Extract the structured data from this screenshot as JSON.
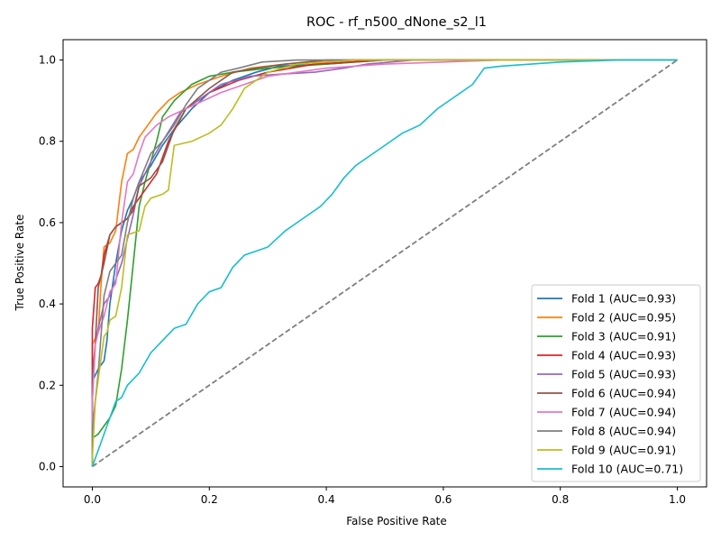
{
  "chart_data": {
    "type": "line",
    "title": "ROC - rf_n500_dNone_s2_l1",
    "xlabel": "False Positive Rate",
    "ylabel": "True Positive Rate",
    "xlim": [
      -0.05,
      1.05
    ],
    "ylim": [
      -0.05,
      1.05
    ],
    "xticks": [
      0.0,
      0.2,
      0.4,
      0.6,
      0.8,
      1.0
    ],
    "yticks": [
      0.0,
      0.2,
      0.4,
      0.6,
      0.8,
      1.0
    ],
    "xtick_labels": [
      "0.0",
      "0.2",
      "0.4",
      "0.6",
      "0.8",
      "1.0"
    ],
    "ytick_labels": [
      "0.0",
      "0.2",
      "0.4",
      "0.6",
      "0.8",
      "1.0"
    ],
    "grid": false,
    "legend_position": "lower-right",
    "diagonal": {
      "x": [
        0,
        1
      ],
      "y": [
        0,
        1
      ],
      "color": "#7f7f7f",
      "style": "dashed"
    },
    "series": [
      {
        "name": "Fold 1 (AUC=0.93)",
        "color": "#1f77b4",
        "x": [
          0,
          0,
          0.01,
          0.02,
          0.025,
          0.03,
          0.04,
          0.05,
          0.06,
          0.07,
          0.08,
          0.1,
          0.12,
          0.14,
          0.17,
          0.2,
          0.24,
          0.28,
          0.32,
          0.4,
          0.5,
          0.65,
          0.8,
          1.0
        ],
        "y": [
          0,
          0.21,
          0.24,
          0.26,
          0.31,
          0.4,
          0.5,
          0.58,
          0.63,
          0.66,
          0.7,
          0.74,
          0.79,
          0.83,
          0.88,
          0.92,
          0.95,
          0.97,
          0.985,
          0.99,
          1.0,
          1.0,
          1.0,
          1.0
        ]
      },
      {
        "name": "Fold 2 (AUC=0.95)",
        "color": "#ff7f0e",
        "x": [
          0,
          0,
          0.01,
          0.015,
          0.02,
          0.03,
          0.04,
          0.05,
          0.06,
          0.07,
          0.08,
          0.09,
          0.11,
          0.13,
          0.15,
          0.18,
          0.22,
          0.27,
          0.33,
          0.45,
          0.6,
          0.8,
          1.0
        ],
        "y": [
          0,
          0.3,
          0.33,
          0.45,
          0.54,
          0.55,
          0.58,
          0.7,
          0.77,
          0.78,
          0.81,
          0.83,
          0.87,
          0.9,
          0.92,
          0.94,
          0.96,
          0.98,
          0.99,
          1.0,
          1.0,
          1.0,
          1.0
        ]
      },
      {
        "name": "Fold 3 (AUC=0.91)",
        "color": "#2ca02c",
        "x": [
          0,
          0,
          0.01,
          0.02,
          0.03,
          0.04,
          0.05,
          0.055,
          0.06,
          0.07,
          0.08,
          0.09,
          0.1,
          0.11,
          0.12,
          0.14,
          0.17,
          0.2,
          0.24,
          0.3,
          0.4,
          0.5,
          0.7,
          1.0
        ],
        "y": [
          0,
          0.07,
          0.08,
          0.1,
          0.12,
          0.15,
          0.24,
          0.3,
          0.36,
          0.5,
          0.64,
          0.7,
          0.75,
          0.8,
          0.86,
          0.9,
          0.94,
          0.96,
          0.97,
          0.98,
          0.99,
          1.0,
          1.0,
          1.0
        ]
      },
      {
        "name": "Fold 4 (AUC=0.93)",
        "color": "#d62728",
        "x": [
          0,
          0,
          0.005,
          0.01,
          0.015,
          0.02,
          0.03,
          0.04,
          0.05,
          0.06,
          0.07,
          0.09,
          0.11,
          0.13,
          0.16,
          0.2,
          0.25,
          0.3,
          0.38,
          0.5,
          0.7,
          1.0
        ],
        "y": [
          0,
          0.34,
          0.44,
          0.45,
          0.47,
          0.52,
          0.57,
          0.59,
          0.6,
          0.61,
          0.64,
          0.68,
          0.72,
          0.8,
          0.88,
          0.92,
          0.95,
          0.97,
          0.99,
          1.0,
          1.0,
          1.0
        ]
      },
      {
        "name": "Fold 5 (AUC=0.93)",
        "color": "#9467bd",
        "x": [
          0,
          0,
          0.005,
          0.01,
          0.015,
          0.02,
          0.03,
          0.04,
          0.05,
          0.06,
          0.07,
          0.08,
          0.1,
          0.12,
          0.15,
          0.18,
          0.22,
          0.27,
          0.32,
          0.38,
          0.43,
          0.47,
          0.55,
          0.7,
          1.0
        ],
        "y": [
          0,
          0.16,
          0.3,
          0.34,
          0.37,
          0.4,
          0.42,
          0.46,
          0.5,
          0.56,
          0.62,
          0.69,
          0.75,
          0.8,
          0.87,
          0.9,
          0.94,
          0.96,
          0.965,
          0.97,
          0.98,
          0.99,
          1.0,
          1.0,
          1.0
        ]
      },
      {
        "name": "Fold 6 (AUC=0.94)",
        "color": "#8c564b",
        "x": [
          0,
          0,
          0.005,
          0.01,
          0.02,
          0.03,
          0.04,
          0.05,
          0.06,
          0.07,
          0.08,
          0.1,
          0.12,
          0.14,
          0.16,
          0.2,
          0.24,
          0.28,
          0.33,
          0.4,
          0.5,
          0.7,
          1.0
        ],
        "y": [
          0,
          0.22,
          0.3,
          0.44,
          0.5,
          0.57,
          0.59,
          0.6,
          0.61,
          0.63,
          0.69,
          0.71,
          0.75,
          0.83,
          0.88,
          0.93,
          0.97,
          0.98,
          0.99,
          1.0,
          1.0,
          1.0,
          1.0
        ]
      },
      {
        "name": "Fold 7 (AUC=0.94)",
        "color": "#e377c2",
        "x": [
          0,
          0,
          0.005,
          0.01,
          0.02,
          0.03,
          0.04,
          0.05,
          0.06,
          0.07,
          0.08,
          0.09,
          0.11,
          0.13,
          0.16,
          0.19,
          0.22,
          0.26,
          0.3,
          0.4,
          0.5,
          0.6,
          0.7,
          1.0
        ],
        "y": [
          0,
          0.16,
          0.3,
          0.33,
          0.37,
          0.43,
          0.45,
          0.6,
          0.7,
          0.72,
          0.77,
          0.81,
          0.84,
          0.86,
          0.88,
          0.9,
          0.92,
          0.94,
          0.96,
          0.98,
          0.99,
          0.995,
          1.0,
          1.0
        ]
      },
      {
        "name": "Fold 8 (AUC=0.94)",
        "color": "#7f7f7f",
        "x": [
          0,
          0,
          0.01,
          0.02,
          0.025,
          0.03,
          0.04,
          0.05,
          0.06,
          0.07,
          0.08,
          0.1,
          0.12,
          0.14,
          0.16,
          0.18,
          0.2,
          0.22,
          0.25,
          0.29,
          0.35,
          0.45,
          0.6,
          1.0
        ],
        "y": [
          0,
          0.09,
          0.23,
          0.42,
          0.45,
          0.48,
          0.5,
          0.52,
          0.6,
          0.66,
          0.7,
          0.77,
          0.8,
          0.84,
          0.89,
          0.93,
          0.95,
          0.97,
          0.98,
          0.995,
          1.0,
          1.0,
          1.0,
          1.0
        ]
      },
      {
        "name": "Fold 9 (AUC=0.91)",
        "color": "#bcbd22",
        "x": [
          0,
          0,
          0.005,
          0.02,
          0.025,
          0.03,
          0.04,
          0.05,
          0.06,
          0.08,
          0.09,
          0.1,
          0.12,
          0.13,
          0.14,
          0.17,
          0.2,
          0.22,
          0.24,
          0.26,
          0.3,
          0.35,
          0.45,
          0.6,
          1.0
        ],
        "y": [
          0,
          0.02,
          0.16,
          0.32,
          0.33,
          0.36,
          0.37,
          0.44,
          0.57,
          0.58,
          0.64,
          0.66,
          0.67,
          0.68,
          0.79,
          0.8,
          0.82,
          0.84,
          0.88,
          0.93,
          0.97,
          0.99,
          1.0,
          1.0,
          1.0
        ]
      },
      {
        "name": "Fold 10 (AUC=0.71)",
        "color": "#17becf",
        "x": [
          0,
          0.01,
          0.02,
          0.03,
          0.04,
          0.05,
          0.06,
          0.08,
          0.1,
          0.12,
          0.14,
          0.16,
          0.18,
          0.2,
          0.22,
          0.24,
          0.26,
          0.28,
          0.3,
          0.33,
          0.36,
          0.39,
          0.41,
          0.43,
          0.45,
          0.48,
          0.5,
          0.53,
          0.56,
          0.59,
          0.62,
          0.65,
          0.67,
          0.7,
          0.75,
          0.8,
          0.9,
          1.0
        ],
        "y": [
          0,
          0.04,
          0.08,
          0.12,
          0.16,
          0.17,
          0.2,
          0.23,
          0.28,
          0.31,
          0.34,
          0.35,
          0.4,
          0.43,
          0.44,
          0.49,
          0.52,
          0.53,
          0.54,
          0.58,
          0.61,
          0.64,
          0.67,
          0.71,
          0.74,
          0.77,
          0.79,
          0.82,
          0.84,
          0.88,
          0.91,
          0.94,
          0.98,
          0.985,
          0.99,
          0.995,
          1.0,
          1.0
        ]
      }
    ]
  }
}
